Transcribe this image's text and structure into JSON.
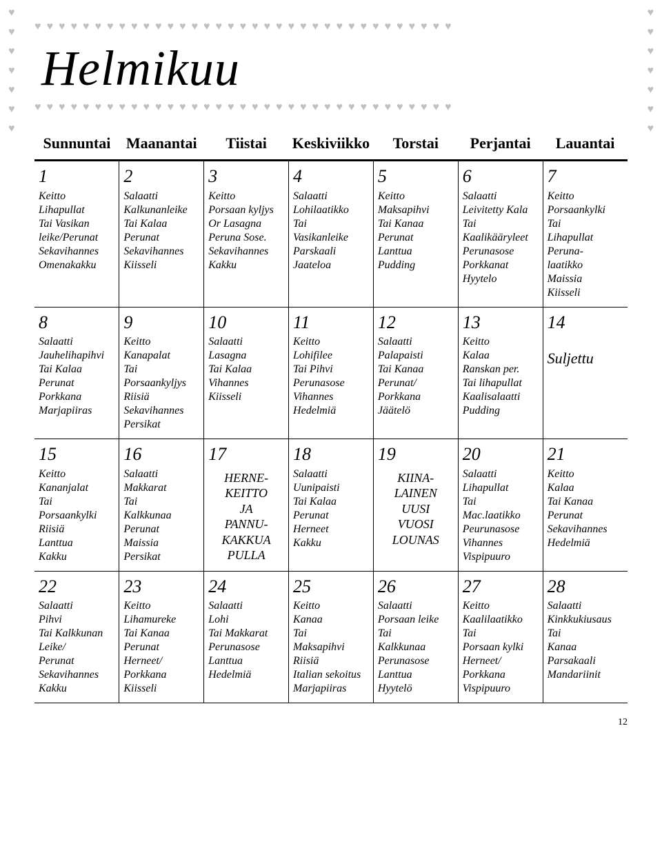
{
  "title": "Helmikuu",
  "pagenum": "12",
  "heart": "♥",
  "days": [
    "Sunnuntai",
    "Maanantai",
    "Tiistai",
    "Keskiviikko",
    "Torstai",
    "Perjantai",
    "Lauantai"
  ],
  "weeks": [
    [
      {
        "n": "1",
        "lines": [
          "Keitto",
          "Lihapullat",
          "Tai Vasikan",
          "leike/Perunat",
          "Sekavihannes",
          "Omenakakku"
        ]
      },
      {
        "n": "2",
        "lines": [
          "Salaatti",
          "Kalkunanleike",
          "Tai Kalaa",
          "Perunat",
          "Sekavihannes",
          "Kiisseli"
        ]
      },
      {
        "n": "3",
        "lines": [
          "Keitto",
          "Porsaan kyljys",
          "Or Lasagna",
          "Peruna Sose.",
          "Sekavihannes",
          "Kakku"
        ]
      },
      {
        "n": "4",
        "lines": [
          "Salaatti",
          "Lohilaatikko",
          "Tai",
          "Vasikanleike",
          "Parskaali",
          "Jaateloa"
        ]
      },
      {
        "n": "5",
        "lines": [
          "Keitto",
          "Maksapihvi",
          "Tai Kanaa",
          "Perunat",
          "Lanttua",
          "Pudding"
        ]
      },
      {
        "n": "6",
        "lines": [
          "Salaatti",
          "Leivitetty Kala",
          "Tai",
          "Kaalikääryleet",
          "Perunasose",
          "Porkkanat",
          "Hyytelo"
        ]
      },
      {
        "n": "7",
        "lines": [
          "Keitto",
          "Porsaankylki",
          "Tai",
          "Lihapullat",
          "Peruna-",
          "laatikko",
          "Maissia",
          "Kiisseli"
        ]
      }
    ],
    [
      {
        "n": "8",
        "lines": [
          "Salaatti",
          "Jauhelihapihvi",
          "Tai Kalaa",
          "Perunat",
          "Porkkana",
          "Marjapiiras"
        ]
      },
      {
        "n": "9",
        "lines": [
          "Keitto",
          "Kanapalat",
          "Tai",
          "Porsaankyljys",
          "Riisiä",
          "Sekavihannes",
          "Persikat"
        ]
      },
      {
        "n": "10",
        "lines": [
          "Salaatti",
          "Lasagna",
          "Tai Kalaa",
          "Vihannes",
          "Kiisseli"
        ]
      },
      {
        "n": "11",
        "lines": [
          "Keitto",
          "Lohifilee",
          "Tai Pihvi",
          "Perunasose",
          "Vihannes",
          "Hedelmiä"
        ]
      },
      {
        "n": "12",
        "lines": [
          "Salaatti",
          "Palapaisti",
          "Tai Kanaa",
          "Perunat/",
          "Porkkana",
          "Jäätelö"
        ]
      },
      {
        "n": "13",
        "lines": [
          "Keitto",
          "Kalaa",
          "Ranskan per.",
          "Tai lihapullat",
          "Kaalisalaatti",
          "Pudding"
        ]
      },
      {
        "n": "14",
        "closed": "Suljettu"
      }
    ],
    [
      {
        "n": "15",
        "lines": [
          "Keitto",
          "Kananjalat",
          "Tai",
          "Porsaankylki",
          "Riisiä",
          "Lanttua",
          "Kakku"
        ]
      },
      {
        "n": "16",
        "lines": [
          "Salaatti",
          "Makkarat",
          "Tai",
          "Kalkkunaa",
          "Perunat",
          "Maissia",
          "Persikat"
        ]
      },
      {
        "n": "17",
        "special": [
          "HERNE-",
          "KEITTO",
          "JA",
          "PANNU-",
          "KAKKUA",
          "PULLA"
        ]
      },
      {
        "n": "18",
        "lines": [
          "Salaatti",
          "Uunipaisti",
          "Tai Kalaa",
          "Perunat",
          "Herneet",
          "Kakku"
        ]
      },
      {
        "n": "19",
        "special": [
          "KIINA-",
          "LAINEN",
          "UUSI",
          "VUOSI",
          "LOUNAS"
        ]
      },
      {
        "n": "20",
        "lines": [
          "Salaatti",
          "Lihapullat",
          "Tai",
          "Mac.laatikko",
          "Peurunasose",
          "Vihannes",
          "Vispipuuro"
        ]
      },
      {
        "n": "21",
        "lines": [
          "Keitto",
          "Kalaa",
          "Tai Kanaa",
          "Perunat",
          "Sekavihannes",
          "Hedelmiä"
        ]
      }
    ],
    [
      {
        "n": "22",
        "lines": [
          "Salaatti",
          "Pihvi",
          "Tai Kalkkunan",
          "Leike/",
          "Perunat",
          "Sekavihannes",
          "Kakku"
        ]
      },
      {
        "n": "23",
        "lines": [
          "Keitto",
          "Lihamureke",
          "Tai Kanaa",
          "Perunat",
          "Herneet/",
          "Porkkana",
          "Kiisseli"
        ]
      },
      {
        "n": "24",
        "lines": [
          " Salaatti",
          "Lohi",
          "Tai Makkarat",
          "Perunasose",
          "Lanttua",
          "Hedelmiä"
        ]
      },
      {
        "n": "25",
        "lines": [
          "Keitto",
          "Kanaa",
          "Tai",
          "Maksapihvi",
          "Riisiä",
          "Italian sekoitus",
          "Marjapiiras"
        ]
      },
      {
        "n": "26",
        "lines": [
          "Salaatti",
          "Porsaan leike",
          "Tai",
          "Kalkkunaa",
          "Perunasose",
          "Lanttua",
          "Hyytelö"
        ]
      },
      {
        "n": "27",
        "lines": [
          "Keitto",
          "Kaalilaatikko",
          "Tai",
          "Porsaan kylki",
          "Herneet/",
          "Porkkana",
          "Vispipuuro"
        ]
      },
      {
        "n": "28",
        "lines": [
          "Salaatti",
          "Kinkkukiusaus",
          "Tai",
          "Kanaa",
          "Parsakaali",
          "Mandariinit"
        ]
      }
    ]
  ]
}
